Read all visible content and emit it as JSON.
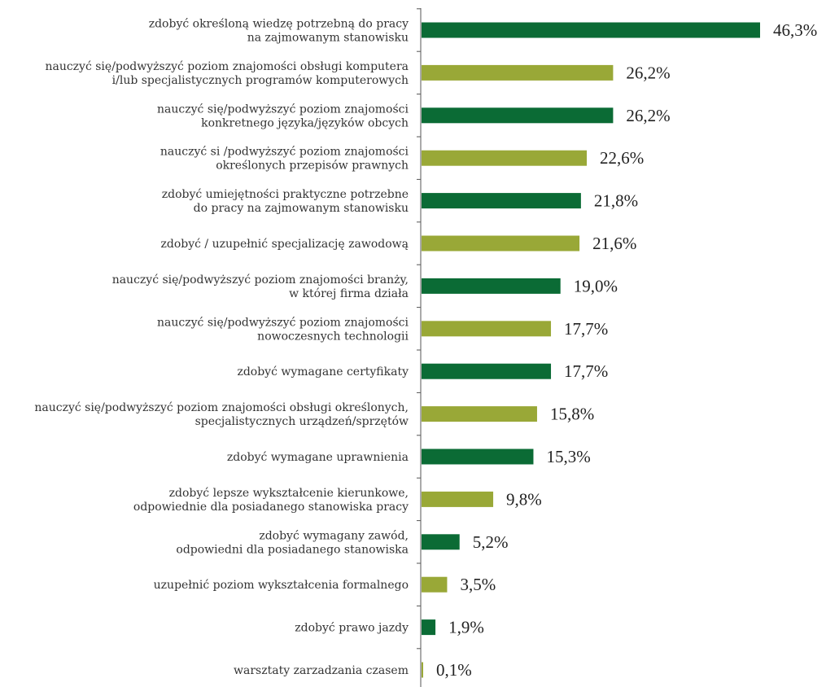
{
  "chart_data": {
    "type": "bar",
    "orientation": "horizontal",
    "categories": [
      [
        "zdobyć określoną wiedzę potrzebną do pracy",
        "na zajmowanym stanowisku"
      ],
      [
        "nauczyć się/podwyższyć poziom znajomości obsługi komputera",
        "i/lub specjalistycznych programów komputerowych"
      ],
      [
        "nauczyć się/podwyższyć poziom znajomości",
        "konkretnego języka/języków obcych"
      ],
      [
        "nauczyć si /podwyższyć poziom znajomości",
        "określonych przepisów prawnych"
      ],
      [
        "zdobyć umiejętności praktyczne potrzebne",
        "do pracy na zajmowanym stanowisku"
      ],
      [
        "zdobyć / uzupełnić specjalizację zawodową"
      ],
      [
        "nauczyć się/podwyższyć poziom znajomości branży,",
        "w której firma działa"
      ],
      [
        "nauczyć się/podwyższyć poziom znajomości",
        "nowoczesnych technologii"
      ],
      [
        "zdobyć wymagane certyfikaty"
      ],
      [
        "nauczyć się/podwyższyć poziom znajomości obsługi określonych,",
        "specjalistycznych urządzeń/sprzętów"
      ],
      [
        "zdobyć wymagane uprawnienia"
      ],
      [
        "zdobyć lepsze wykształcenie kierunkowe,",
        "odpowiednie dla posiadanego stanowiska pracy"
      ],
      [
        "zdobyć wymagany zawód,",
        "odpowiedni dla posiadanego stanowiska"
      ],
      [
        "uzupełnić poziom wykształcenia formalnego"
      ],
      [
        "zdobyć prawo jazdy"
      ],
      [
        "warsztaty zarzadzania czasem"
      ]
    ],
    "values": [
      46.3,
      26.2,
      26.2,
      22.6,
      21.8,
      21.6,
      19.0,
      17.7,
      17.7,
      15.8,
      15.3,
      9.8,
      5.2,
      3.5,
      1.9,
      0.1
    ],
    "value_labels": [
      "46,3%",
      "26,2%",
      "26,2%",
      "22,6%",
      "21,8%",
      "21,6%",
      "19,0%",
      "17,7%",
      "17,7%",
      "15,8%",
      "15,3%",
      "9,8%",
      "5,2%",
      "3,5%",
      "1,9%",
      "0,1%"
    ],
    "colors": [
      "#0b6b35",
      "#99a837"
    ],
    "xlim": [
      0,
      50
    ],
    "grid": false,
    "legend": "none",
    "title": "",
    "xlabel": "",
    "ylabel": ""
  }
}
